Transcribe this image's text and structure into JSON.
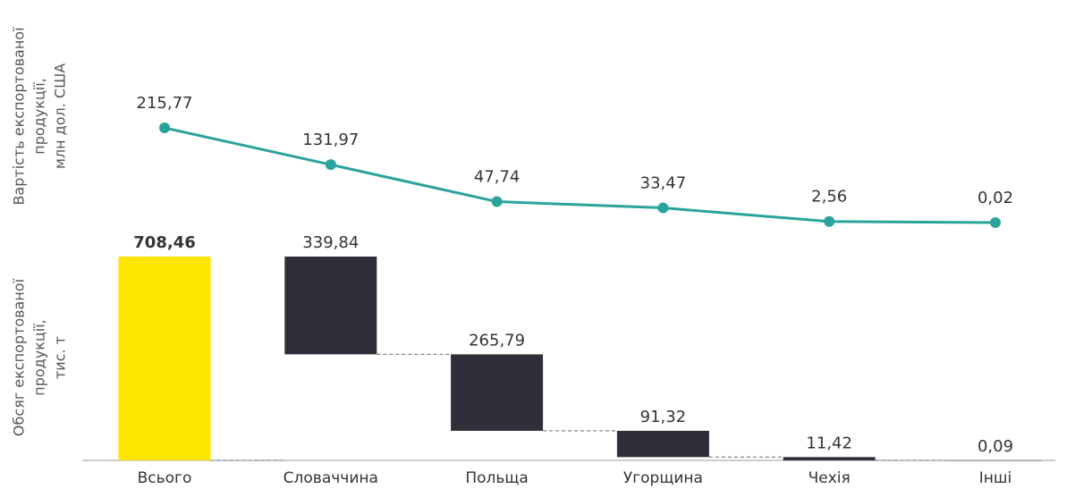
{
  "chart_data": [
    {
      "type": "line",
      "y_label": [
        "Вартість експортованої",
        "продукції,",
        "млн дол. США"
      ],
      "series": [
        {
          "color": "#2aa39a",
          "values": [
            215.77,
            131.97,
            47.74,
            33.47,
            2.56,
            0.02
          ],
          "value_labels": [
            "215,77",
            "131,97",
            "47,74",
            "33,47",
            "2,56",
            "0,02"
          ]
        }
      ]
    },
    {
      "type": "waterfall",
      "y_label": [
        "Обсяг експортованої",
        "продукції,",
        "тис. т"
      ],
      "categories": [
        "Всього",
        "Словаччина",
        "Польща",
        "Угорщина",
        "Чехія",
        "Інші"
      ],
      "values": [
        708.46,
        339.84,
        265.79,
        91.32,
        11.42,
        0.09
      ],
      "value_labels": [
        "708,46",
        "339,84",
        "265,79",
        "91,32",
        "11,42",
        "0,09"
      ],
      "total_color": "#ffe600",
      "color": "#2e2f38"
    }
  ]
}
